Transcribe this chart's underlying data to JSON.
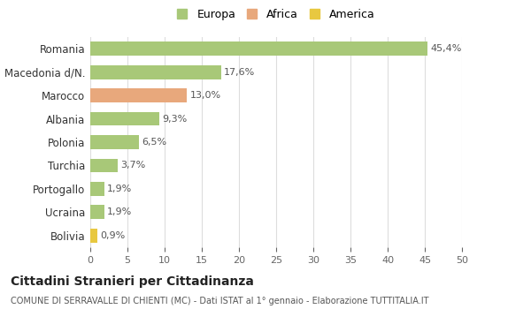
{
  "categories": [
    "Romania",
    "Macedonia d/N.",
    "Marocco",
    "Albania",
    "Polonia",
    "Turchia",
    "Portogallo",
    "Ucraina",
    "Bolivia"
  ],
  "values": [
    45.4,
    17.6,
    13.0,
    9.3,
    6.5,
    3.7,
    1.9,
    1.9,
    0.9
  ],
  "labels": [
    "45,4%",
    "17,6%",
    "13,0%",
    "9,3%",
    "6,5%",
    "3,7%",
    "1,9%",
    "1,9%",
    "0,9%"
  ],
  "colors": [
    "#a8c878",
    "#a8c878",
    "#e8a87c",
    "#a8c878",
    "#a8c878",
    "#a8c878",
    "#a8c878",
    "#a8c878",
    "#e8c840"
  ],
  "legend_labels": [
    "Europa",
    "Africa",
    "America"
  ],
  "legend_colors": [
    "#a8c878",
    "#e8a87c",
    "#e8c840"
  ],
  "title": "Cittadini Stranieri per Cittadinanza",
  "subtitle": "COMUNE DI SERRAVALLE DI CHIENTI (MC) - Dati ISTAT al 1° gennaio - Elaborazione TUTTITALIA.IT",
  "xlim": [
    0,
    50
  ],
  "xticks": [
    0,
    5,
    10,
    15,
    20,
    25,
    30,
    35,
    40,
    45,
    50
  ],
  "bg_color": "#ffffff",
  "grid_color": "#dddddd",
  "bar_height": 0.6
}
